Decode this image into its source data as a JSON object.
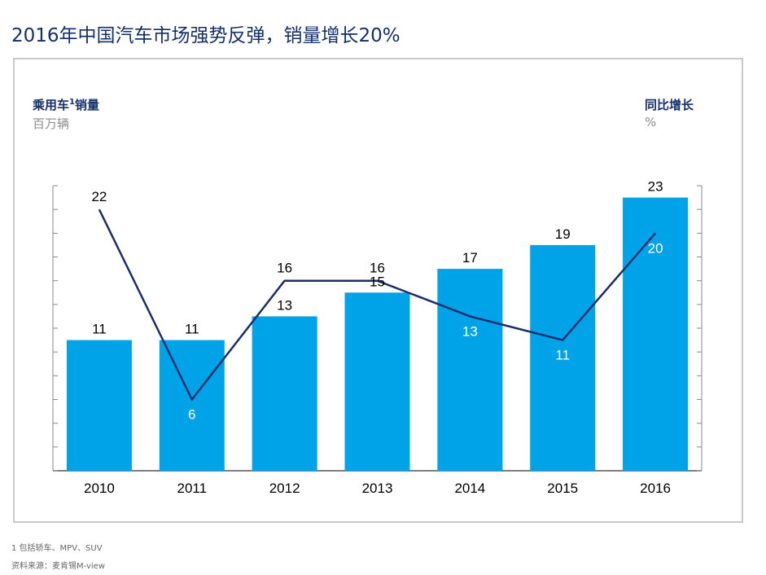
{
  "title": "2016年中国汽车市场强势反弹，销量增长20%",
  "left_axis": {
    "title": "乘用车",
    "footnote_mark": "1",
    "title_suffix": "销量",
    "unit": "百万辆"
  },
  "right_axis": {
    "title": "同比增长",
    "unit": "%"
  },
  "footnotes": {
    "note": "1 包括轿车、MPV、SUV",
    "source": "资料来源：麦肯锡M-view"
  },
  "colors": {
    "bar": "#00a3e8",
    "line": "#1a2f6b",
    "title": "#14306b"
  },
  "chart_data": {
    "type": "bar",
    "categories": [
      "2010",
      "2011",
      "2012",
      "2013",
      "2014",
      "2015",
      "2016"
    ],
    "series": [
      {
        "name": "乘用车销量",
        "type": "bar",
        "axis": "left",
        "values": [
          11,
          11,
          13,
          15,
          17,
          19,
          23
        ]
      },
      {
        "name": "同比增长",
        "type": "line",
        "axis": "right",
        "values": [
          22,
          6,
          16,
          16,
          13,
          11,
          20
        ]
      }
    ],
    "ylim_left": [
      0,
      24
    ],
    "ylim_right": [
      0,
      24
    ],
    "ylabel": "乘用车1销量 百万辆",
    "y2label": "同比增长 %",
    "grid": false,
    "legend": "none"
  }
}
